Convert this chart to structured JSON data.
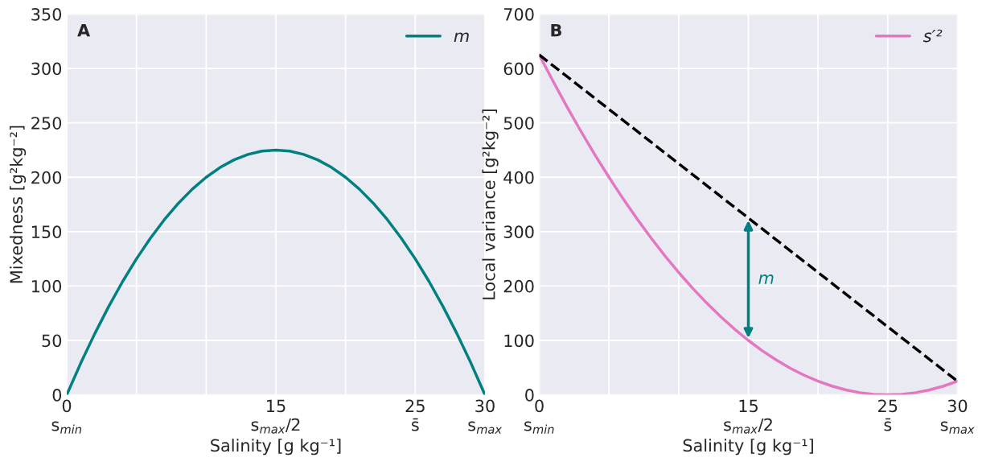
{
  "chart_data": [
    {
      "type": "line",
      "title": "A",
      "xlabel": "Salinity [g kg⁻¹]",
      "ylabel": "Mixedness [g²kg⁻²]",
      "x": [
        0,
        1,
        2,
        3,
        4,
        5,
        6,
        7,
        8,
        9,
        10,
        11,
        12,
        13,
        14,
        15,
        16,
        17,
        18,
        19,
        20,
        21,
        22,
        23,
        24,
        25,
        26,
        27,
        28,
        29,
        30
      ],
      "series": [
        {
          "name": "m",
          "color": "#008080",
          "values": [
            0,
            29,
            56,
            81,
            104,
            125,
            144,
            161,
            176,
            189,
            200,
            209,
            216,
            221,
            224,
            225,
            224,
            221,
            216,
            209,
            200,
            189,
            176,
            161,
            144,
            125,
            104,
            81,
            56,
            29,
            0
          ]
        }
      ],
      "xlim": [
        0,
        30
      ],
      "xticks": [
        {
          "value": 0,
          "label": "0\ns$_{min}$"
        },
        {
          "value": 5,
          "label": null
        },
        {
          "value": 10,
          "label": null
        },
        {
          "value": 15,
          "label": "15\ns$_{max}$/2"
        },
        {
          "value": 20,
          "label": null
        },
        {
          "value": 25,
          "label": "25\ns̄"
        },
        {
          "value": 30,
          "label": "30\ns$_{max}$"
        }
      ],
      "ylim": [
        0,
        350
      ],
      "yticks": [
        0,
        50,
        100,
        150,
        200,
        250,
        300,
        350
      ],
      "grid": true,
      "legend": "top right",
      "line_style": "solid"
    },
    {
      "type": "line",
      "title": "B",
      "xlabel": "Salinity [g kg⁻¹]",
      "ylabel": "Local variance [g²kg⁻²]",
      "x": [
        0,
        1,
        2,
        3,
        4,
        5,
        6,
        7,
        8,
        9,
        10,
        11,
        12,
        13,
        14,
        15,
        16,
        17,
        18,
        19,
        20,
        21,
        22,
        23,
        24,
        25,
        26,
        27,
        28,
        29,
        30
      ],
      "series": [
        {
          "name": "s′²",
          "color": "#e377c2",
          "values": [
            625,
            576,
            529,
            484,
            441,
            400,
            361,
            324,
            289,
            256,
            225,
            196,
            169,
            144,
            121,
            100,
            81,
            64,
            49,
            36,
            25,
            16,
            9,
            4,
            1,
            0,
            1,
            4,
            9,
            16,
            25
          ]
        },
        {
          "color": "#000000",
          "x": [
            0,
            30
          ],
          "values": [
            625,
            25
          ],
          "line_style": "dashed"
        }
      ],
      "annotations": [
        "m"
      ],
      "xlim": [
        0,
        30
      ],
      "xticks": [
        {
          "value": 0,
          "label": "0\ns$_{min}$"
        },
        {
          "value": 5,
          "label": null
        },
        {
          "value": 10,
          "label": null
        },
        {
          "value": 15,
          "label": "15\ns$_{max}$/2"
        },
        {
          "value": 20,
          "label": null
        },
        {
          "value": 25,
          "label": "25\ns̄"
        },
        {
          "value": 30,
          "label": "30\ns$_{max}$"
        }
      ],
      "ylim": [
        0,
        700
      ],
      "yticks": [
        0,
        100,
        200,
        300,
        400,
        500,
        600,
        700
      ],
      "grid": true,
      "legend": "top right",
      "line_style": "solid"
    }
  ]
}
